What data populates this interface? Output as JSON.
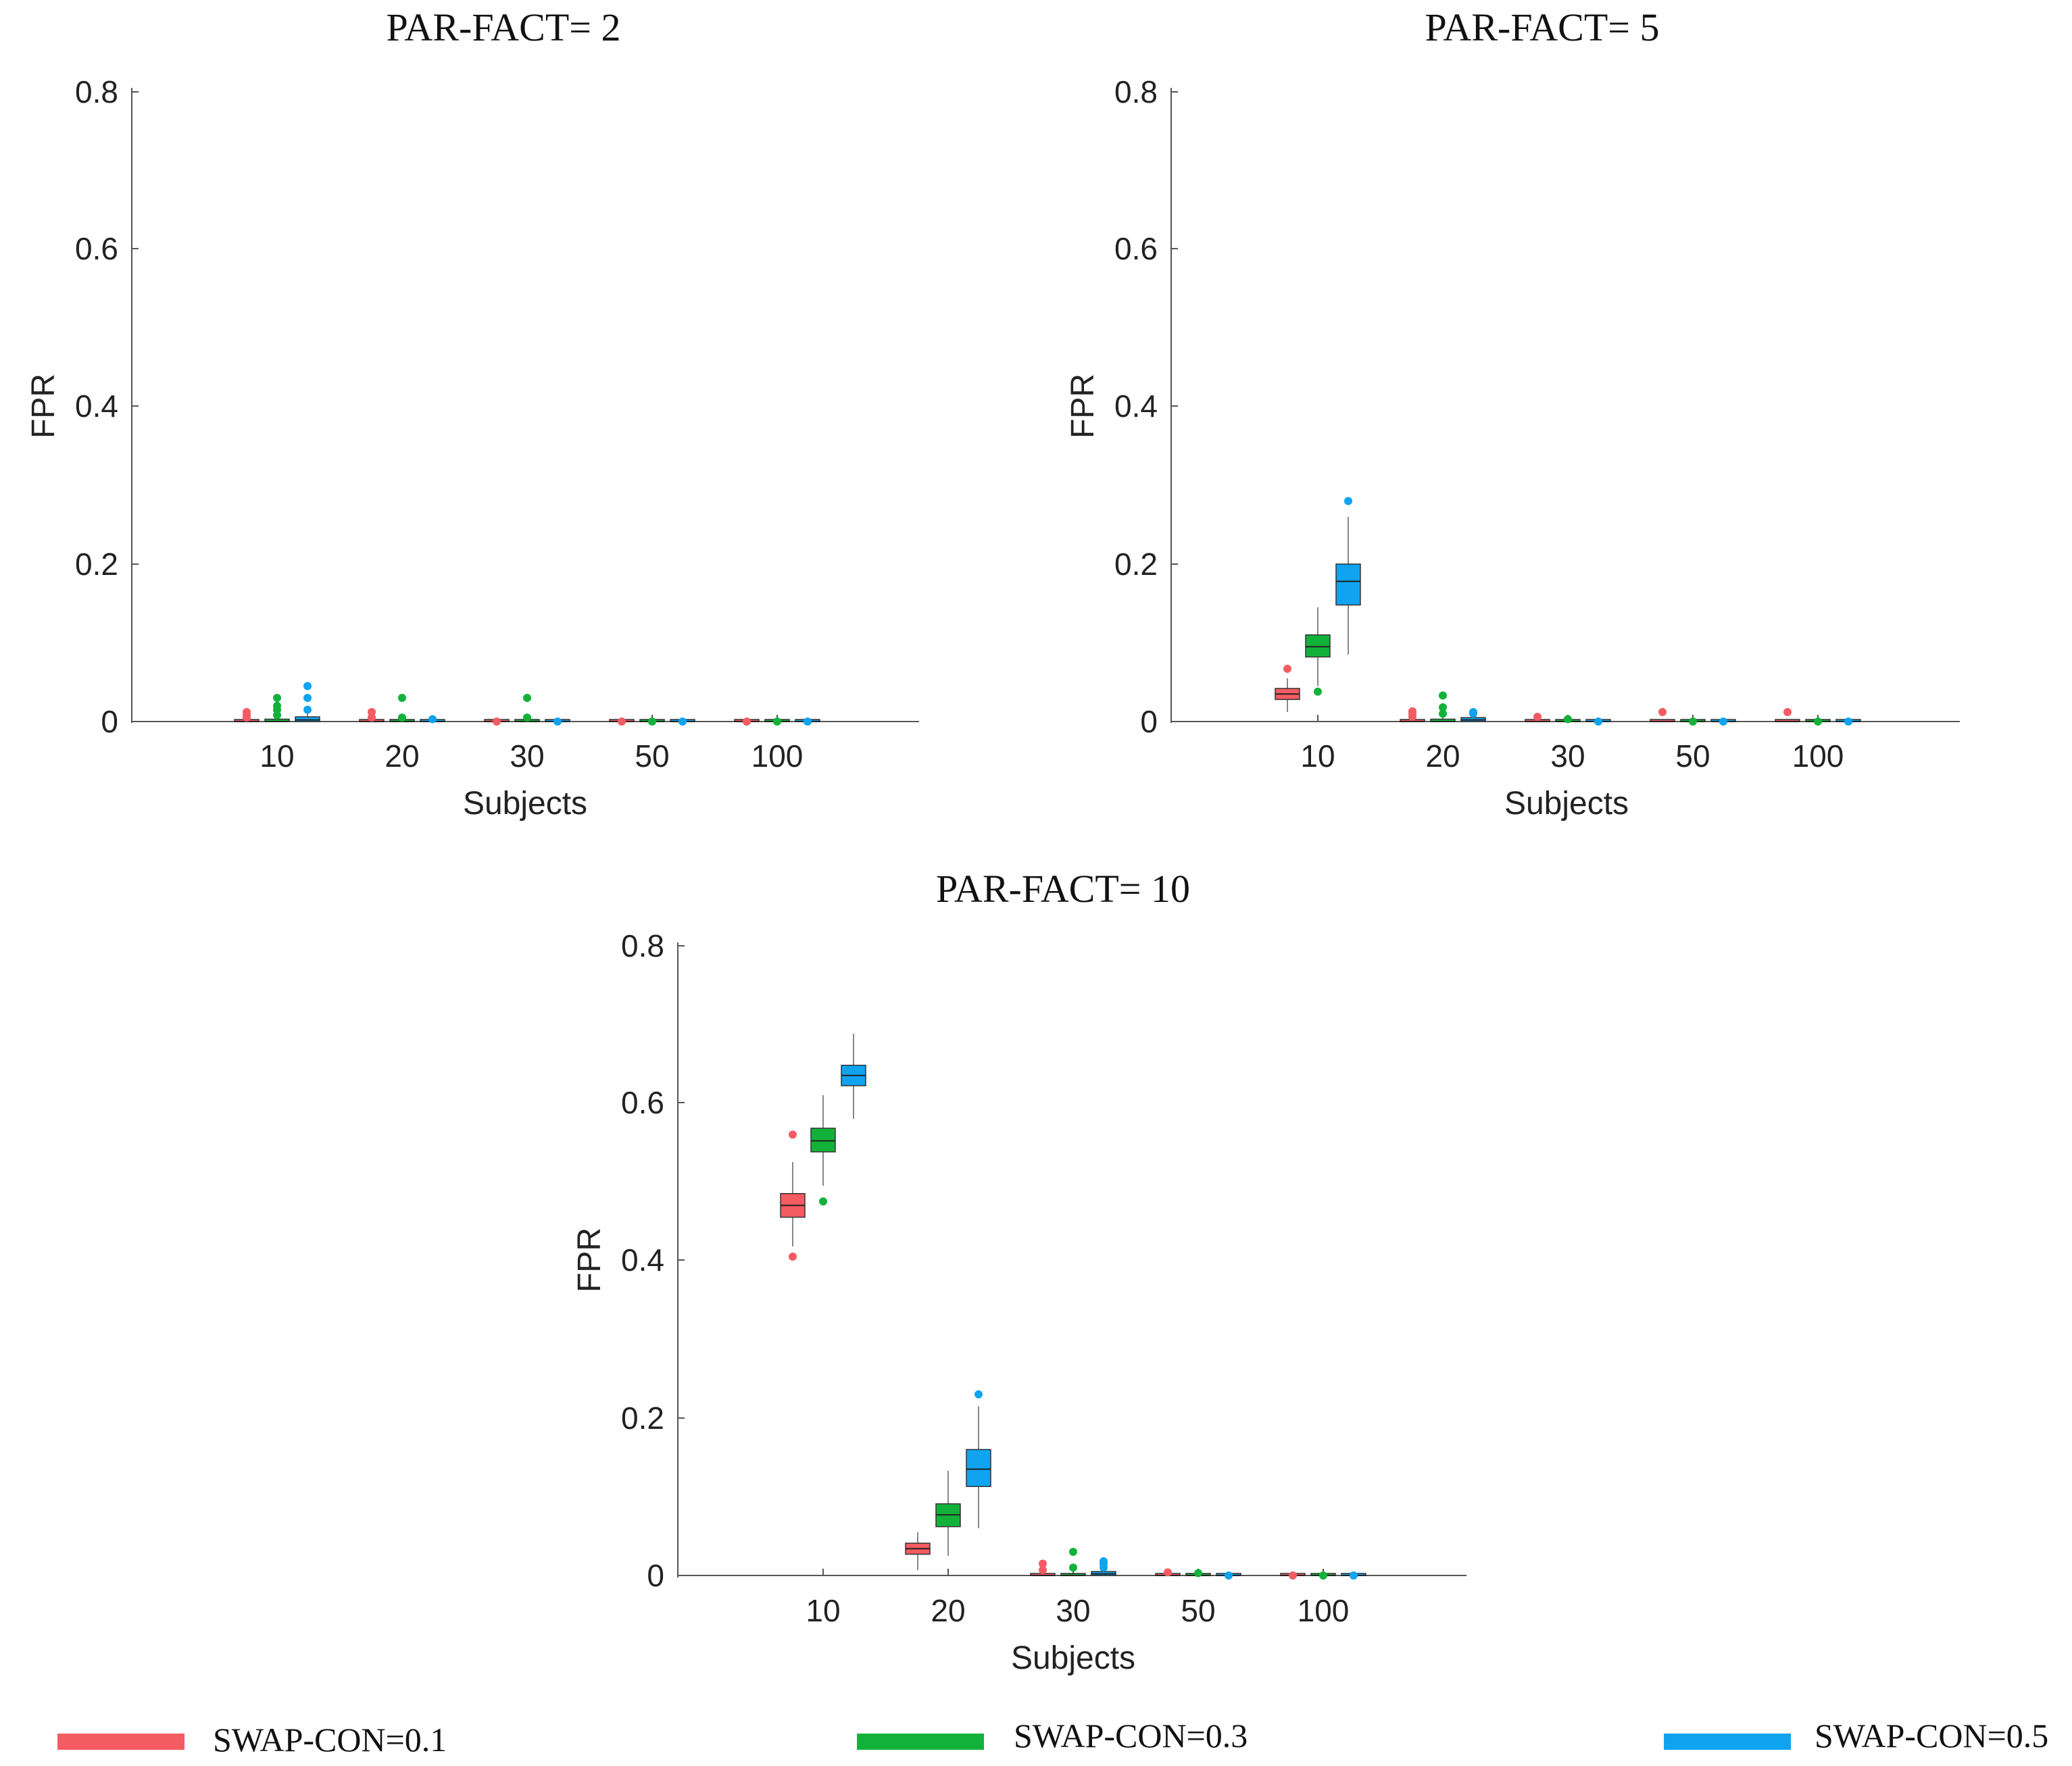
{
  "chart_data": [
    {
      "type": "box",
      "title": "PAR-FACT= 2",
      "xlabel": "Subjects",
      "ylabel": "FPR",
      "categories": [
        "10",
        "20",
        "30",
        "50",
        "100"
      ],
      "ylim": [
        0,
        0.8
      ],
      "yticks": [
        "0",
        "0.2",
        "0.4",
        "0.6",
        "0.8"
      ],
      "series": [
        {
          "name": "SWAP-CON=0.1",
          "boxes": [
            {
              "q1": 0,
              "median": 0,
              "q3": 0.002,
              "whisker_low": 0,
              "whisker_high": 0.002,
              "outliers": [
                0.005,
                0.008,
                0.012
              ]
            },
            {
              "q1": 0,
              "median": 0,
              "q3": 0.001,
              "whisker_low": 0,
              "whisker_high": 0.001,
              "outliers": [
                0.005,
                0.012
              ]
            },
            {
              "q1": 0,
              "median": 0,
              "q3": 0,
              "whisker_low": 0,
              "whisker_high": 0,
              "outliers": [
                0
              ]
            },
            {
              "q1": 0,
              "median": 0,
              "q3": 0,
              "whisker_low": 0,
              "whisker_high": 0,
              "outliers": [
                0
              ]
            },
            {
              "q1": 0,
              "median": 0,
              "q3": 0,
              "whisker_low": 0,
              "whisker_high": 0,
              "outliers": [
                0
              ]
            }
          ]
        },
        {
          "name": "SWAP-CON=0.3",
          "boxes": [
            {
              "q1": 0,
              "median": 0,
              "q3": 0.003,
              "whisker_low": 0,
              "whisker_high": 0.003,
              "outliers": [
                0.008,
                0.015,
                0.02,
                0.03
              ]
            },
            {
              "q1": 0,
              "median": 0,
              "q3": 0.001,
              "whisker_low": 0,
              "whisker_high": 0.001,
              "outliers": [
                0.005,
                0.03
              ]
            },
            {
              "q1": 0,
              "median": 0,
              "q3": 0,
              "whisker_low": 0,
              "whisker_high": 0,
              "outliers": [
                0.005,
                0.03
              ]
            },
            {
              "q1": 0,
              "median": 0,
              "q3": 0,
              "whisker_low": 0,
              "whisker_high": 0,
              "outliers": [
                0
              ]
            },
            {
              "q1": 0,
              "median": 0,
              "q3": 0,
              "whisker_low": 0,
              "whisker_high": 0,
              "outliers": [
                0
              ]
            }
          ]
        },
        {
          "name": "SWAP-CON=0.5",
          "boxes": [
            {
              "q1": 0,
              "median": 0.002,
              "q3": 0.006,
              "whisker_low": 0,
              "whisker_high": 0.01,
              "outliers": [
                0.015,
                0.03,
                0.045
              ]
            },
            {
              "q1": 0,
              "median": 0,
              "q3": 0.001,
              "whisker_low": 0,
              "whisker_high": 0.001,
              "outliers": [
                0.003
              ]
            },
            {
              "q1": 0,
              "median": 0,
              "q3": 0,
              "whisker_low": 0,
              "whisker_high": 0,
              "outliers": [
                0
              ]
            },
            {
              "q1": 0,
              "median": 0,
              "q3": 0,
              "whisker_low": 0,
              "whisker_high": 0,
              "outliers": [
                0
              ]
            },
            {
              "q1": 0,
              "median": 0,
              "q3": 0,
              "whisker_low": 0,
              "whisker_high": 0,
              "outliers": [
                0
              ]
            }
          ]
        }
      ]
    },
    {
      "type": "box",
      "title": "PAR-FACT= 5",
      "xlabel": "Subjects",
      "ylabel": "FPR",
      "categories": [
        "10",
        "20",
        "30",
        "50",
        "100"
      ],
      "ylim": [
        0,
        0.8
      ],
      "yticks": [
        "0",
        "0.2",
        "0.4",
        "0.6",
        "0.8"
      ],
      "series": [
        {
          "name": "SWAP-CON=0.1",
          "boxes": [
            {
              "q1": 0.028,
              "median": 0.035,
              "q3": 0.042,
              "whisker_low": 0.012,
              "whisker_high": 0.055,
              "outliers": [
                0.067
              ]
            },
            {
              "q1": 0,
              "median": 0,
              "q3": 0.002,
              "whisker_low": 0,
              "whisker_high": 0.004,
              "outliers": [
                0.006,
                0.01,
                0.013
              ]
            },
            {
              "q1": 0,
              "median": 0,
              "q3": 0,
              "whisker_low": 0,
              "whisker_high": 0,
              "outliers": [
                0.006
              ]
            },
            {
              "q1": 0,
              "median": 0,
              "q3": 0,
              "whisker_low": 0,
              "whisker_high": 0,
              "outliers": [
                0.012
              ]
            },
            {
              "q1": 0,
              "median": 0,
              "q3": 0,
              "whisker_low": 0,
              "whisker_high": 0,
              "outliers": [
                0.012
              ]
            }
          ]
        },
        {
          "name": "SWAP-CON=0.3",
          "boxes": [
            {
              "q1": 0.082,
              "median": 0.095,
              "q3": 0.11,
              "whisker_low": 0.045,
              "whisker_high": 0.145,
              "outliers": [
                0.038
              ]
            },
            {
              "q1": 0,
              "median": 0,
              "q3": 0.003,
              "whisker_low": 0,
              "whisker_high": 0.005,
              "outliers": [
                0.01,
                0.018,
                0.033
              ]
            },
            {
              "q1": 0,
              "median": 0,
              "q3": 0,
              "whisker_low": 0,
              "whisker_high": 0,
              "outliers": [
                0.003
              ]
            },
            {
              "q1": 0,
              "median": 0,
              "q3": 0,
              "whisker_low": 0,
              "whisker_high": 0,
              "outliers": [
                0
              ]
            },
            {
              "q1": 0,
              "median": 0,
              "q3": 0,
              "whisker_low": 0,
              "whisker_high": 0,
              "outliers": [
                0
              ]
            }
          ]
        },
        {
          "name": "SWAP-CON=0.5",
          "boxes": [
            {
              "q1": 0.148,
              "median": 0.178,
              "q3": 0.2,
              "whisker_low": 0.085,
              "whisker_high": 0.26,
              "outliers": [
                0.28
              ]
            },
            {
              "q1": 0,
              "median": 0.002,
              "q3": 0.005,
              "whisker_low": 0,
              "whisker_high": 0.007,
              "outliers": [
                0.01,
                0.012
              ]
            },
            {
              "q1": 0,
              "median": 0,
              "q3": 0,
              "whisker_low": 0,
              "whisker_high": 0,
              "outliers": [
                0
              ]
            },
            {
              "q1": 0,
              "median": 0,
              "q3": 0,
              "whisker_low": 0,
              "whisker_high": 0,
              "outliers": [
                0
              ]
            },
            {
              "q1": 0,
              "median": 0,
              "q3": 0,
              "whisker_low": 0,
              "whisker_high": 0,
              "outliers": [
                0
              ]
            }
          ]
        }
      ]
    },
    {
      "type": "box",
      "title": "PAR-FACT= 10",
      "xlabel": "Subjects",
      "ylabel": "FPR",
      "categories": [
        "10",
        "20",
        "30",
        "50",
        "100"
      ],
      "ylim": [
        0,
        0.8
      ],
      "yticks": [
        "0",
        "0.2",
        "0.4",
        "0.6",
        "0.8"
      ],
      "series": [
        {
          "name": "SWAP-CON=0.1",
          "boxes": [
            {
              "q1": 0.455,
              "median": 0.47,
              "q3": 0.485,
              "whisker_low": 0.418,
              "whisker_high": 0.525,
              "outliers": [
                0.405,
                0.56
              ]
            },
            {
              "q1": 0.027,
              "median": 0.034,
              "q3": 0.041,
              "whisker_low": 0.007,
              "whisker_high": 0.055,
              "outliers": []
            },
            {
              "q1": 0,
              "median": 0,
              "q3": 0.002,
              "whisker_low": 0,
              "whisker_high": 0.003,
              "outliers": [
                0.007,
                0.015
              ]
            },
            {
              "q1": 0,
              "median": 0,
              "q3": 0,
              "whisker_low": 0,
              "whisker_high": 0,
              "outliers": [
                0.004
              ]
            },
            {
              "q1": 0,
              "median": 0,
              "q3": 0,
              "whisker_low": 0,
              "whisker_high": 0,
              "outliers": [
                0
              ]
            }
          ]
        },
        {
          "name": "SWAP-CON=0.3",
          "boxes": [
            {
              "q1": 0.538,
              "median": 0.552,
              "q3": 0.568,
              "whisker_low": 0.495,
              "whisker_high": 0.61,
              "outliers": [
                0.475
              ]
            },
            {
              "q1": 0.062,
              "median": 0.077,
              "q3": 0.091,
              "whisker_low": 0.025,
              "whisker_high": 0.133,
              "outliers": []
            },
            {
              "q1": 0,
              "median": 0,
              "q3": 0.002,
              "whisker_low": 0,
              "whisker_high": 0.003,
              "outliers": [
                0.01,
                0.03
              ]
            },
            {
              "q1": 0,
              "median": 0,
              "q3": 0,
              "whisker_low": 0,
              "whisker_high": 0,
              "outliers": [
                0.003
              ]
            },
            {
              "q1": 0,
              "median": 0,
              "q3": 0,
              "whisker_low": 0,
              "whisker_high": 0,
              "outliers": [
                0
              ]
            }
          ]
        },
        {
          "name": "SWAP-CON=0.5",
          "boxes": [
            {
              "q1": 0.622,
              "median": 0.635,
              "q3": 0.648,
              "whisker_low": 0.58,
              "whisker_high": 0.688,
              "outliers": []
            },
            {
              "q1": 0.113,
              "median": 0.135,
              "q3": 0.16,
              "whisker_low": 0.06,
              "whisker_high": 0.215,
              "outliers": [
                0.23
              ]
            },
            {
              "q1": 0,
              "median": 0.002,
              "q3": 0.005,
              "whisker_low": 0,
              "whisker_high": 0.007,
              "outliers": [
                0.01,
                0.015,
                0.018
              ]
            },
            {
              "q1": 0,
              "median": 0,
              "q3": 0,
              "whisker_low": 0,
              "whisker_high": 0,
              "outliers": [
                0
              ]
            },
            {
              "q1": 0,
              "median": 0,
              "q3": 0,
              "whisker_low": 0,
              "whisker_high": 0,
              "outliers": [
                0
              ]
            }
          ]
        }
      ]
    }
  ],
  "legend": {
    "items": [
      {
        "label": "SWAP-CON=0.1",
        "color": "#f45b62"
      },
      {
        "label": "SWAP-CON=0.3",
        "color": "#12b23a"
      },
      {
        "label": "SWAP-CON=0.5",
        "color": "#0fa3f0"
      }
    ]
  },
  "colors": {
    "series": [
      "#f45b62",
      "#12b23a",
      "#0fa3f0"
    ],
    "axis": "#555555",
    "whisker": "#888888",
    "box_edge": "#333333"
  }
}
